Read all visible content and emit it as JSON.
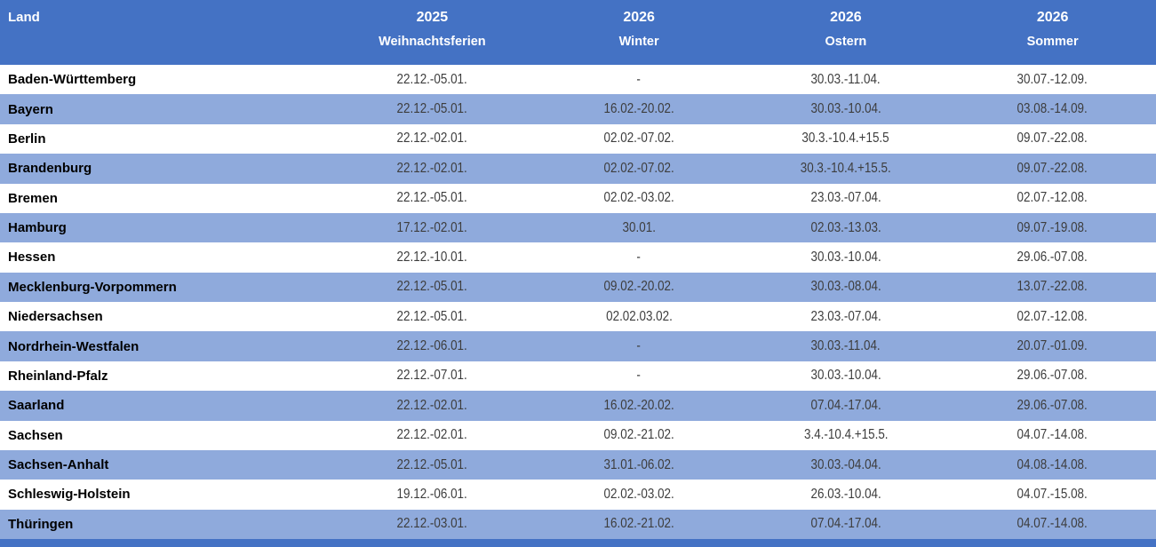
{
  "table": {
    "header": {
      "land_label": "Land",
      "columns": [
        {
          "year": "2025",
          "name": "Weihnachtsferien"
        },
        {
          "year": "2026",
          "name": "Winter"
        },
        {
          "year": "2026",
          "name": "Ostern"
        },
        {
          "year": "2026",
          "name": "Sommer"
        }
      ]
    },
    "rows": [
      {
        "land": "Baden-Württemberg",
        "weihnachten": "22.12.-05.01.",
        "winter": "-",
        "ostern": "30.03.-11.04.",
        "sommer": "30.07.-12.09."
      },
      {
        "land": "Bayern",
        "weihnachten": "22.12.-05.01.",
        "winter": "16.02.-20.02.",
        "ostern": "30.03.-10.04.",
        "sommer": "03.08.-14.09."
      },
      {
        "land": "Berlin",
        "weihnachten": "22.12.-02.01.",
        "winter": "02.02.-07.02.",
        "ostern": "30.3.-10.4.+15.5",
        "sommer": "09.07.-22.08."
      },
      {
        "land": "Brandenburg",
        "weihnachten": "22.12.-02.01.",
        "winter": "02.02.-07.02.",
        "ostern": "30.3.-10.4.+15.5.",
        "sommer": "09.07.-22.08."
      },
      {
        "land": "Bremen",
        "weihnachten": "22.12.-05.01.",
        "winter": "02.02.-03.02.",
        "ostern": "23.03.-07.04.",
        "sommer": "02.07.-12.08."
      },
      {
        "land": "Hamburg",
        "weihnachten": "17.12.-02.01.",
        "winter": "30.01.",
        "ostern": "02.03.-13.03.",
        "sommer": "09.07.-19.08."
      },
      {
        "land": "Hessen",
        "weihnachten": "22.12.-10.01.",
        "winter": "-",
        "ostern": "30.03.-10.04.",
        "sommer": "29.06.-07.08."
      },
      {
        "land": "Mecklenburg-Vorpommern",
        "weihnachten": "22.12.-05.01.",
        "winter": "09.02.-20.02.",
        "ostern": "30.03.-08.04.",
        "sommer": "13.07.-22.08."
      },
      {
        "land": "Niedersachsen",
        "weihnachten": "22.12.-05.01.",
        "winter": "02.02.03.02.",
        "ostern": "23.03.-07.04.",
        "sommer": "02.07.-12.08."
      },
      {
        "land": "Nordrhein-Westfalen",
        "weihnachten": "22.12.-06.01.",
        "winter": "-",
        "ostern": "30.03.-11.04.",
        "sommer": "20.07.-01.09."
      },
      {
        "land": "Rheinland-Pfalz",
        "weihnachten": "22.12.-07.01.",
        "winter": "-",
        "ostern": "30.03.-10.04.",
        "sommer": "29.06.-07.08."
      },
      {
        "land": "Saarland",
        "weihnachten": "22.12.-02.01.",
        "winter": "16.02.-20.02.",
        "ostern": "07.04.-17.04.",
        "sommer": "29.06.-07.08."
      },
      {
        "land": "Sachsen",
        "weihnachten": "22.12.-02.01.",
        "winter": "09.02.-21.02.",
        "ostern": "3.4.-10.4.+15.5.",
        "sommer": "04.07.-14.08."
      },
      {
        "land": "Sachsen-Anhalt",
        "weihnachten": "22.12.-05.01.",
        "winter": "31.01.-06.02.",
        "ostern": "30.03.-04.04.",
        "sommer": "04.08.-14.08."
      },
      {
        "land": "Schleswig-Holstein",
        "weihnachten": "19.12.-06.01.",
        "winter": "02.02.-03.02.",
        "ostern": "26.03.-10.04.",
        "sommer": "04.07.-15.08."
      },
      {
        "land": "Thüringen",
        "weihnachten": "22.12.-03.01.",
        "winter": "16.02.-21.02.",
        "ostern": "07.04.-17.04.",
        "sommer": "04.07.-14.08."
      }
    ],
    "colors": {
      "header_bg": "#4472C4",
      "header_text": "#FFFFFF",
      "alt_row_bg": "#8FAADC",
      "bottom_bar": "#4472C4",
      "date_text": "#3D3D3D",
      "land_text": "#000000"
    }
  }
}
